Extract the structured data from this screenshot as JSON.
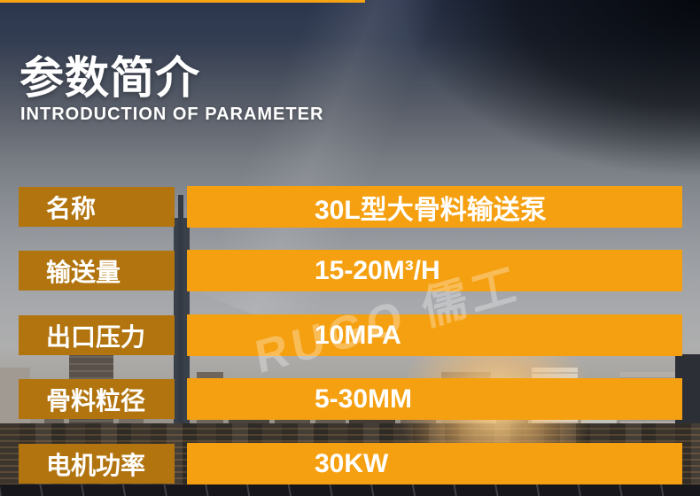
{
  "colors": {
    "top_bar": "#f7a412",
    "label_box": "#b1740f",
    "value_box": "#f5a011",
    "text": "#ffffff"
  },
  "header": {
    "title": "参数简介",
    "subtitle": "INTRODUCTION OF PARAMETER"
  },
  "watermark": {
    "text": "RUGO 儒工"
  },
  "table": {
    "rows": [
      {
        "label": "名称",
        "value": "30L型大骨料输送泵"
      },
      {
        "label": "输送量",
        "value": "15-20M³/H"
      },
      {
        "label": "出口压力",
        "value": "10MPA"
      },
      {
        "label": "骨料粒径",
        "value": "5-30MM"
      },
      {
        "label": "电机功率",
        "value": "30KW"
      }
    ]
  }
}
